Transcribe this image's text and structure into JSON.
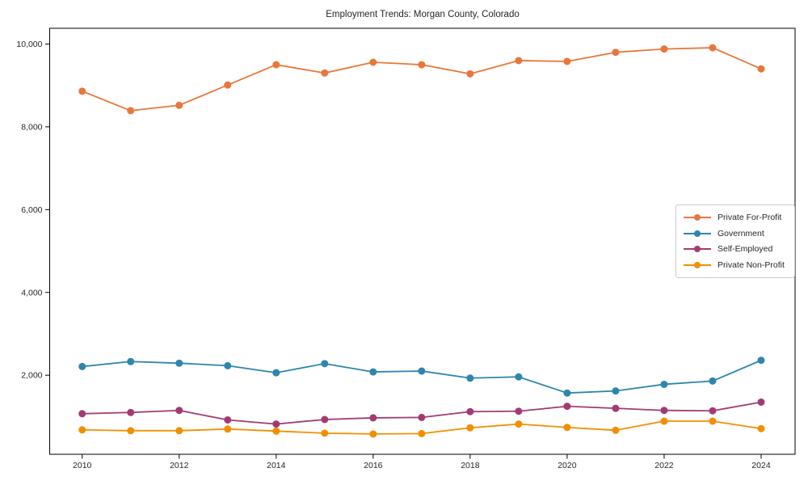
{
  "figure": {
    "background": "#ffffff",
    "text_color": "#262626",
    "frame_color": "#000000"
  },
  "chart_data": {
    "type": "line",
    "title": "Employment Trends: Morgan County, Colorado",
    "xlabel": "",
    "ylabel": "",
    "grid": false,
    "marker": "circle",
    "legend_position": "center-right",
    "x": [
      2010,
      2011,
      2012,
      2013,
      2014,
      2015,
      2016,
      2017,
      2018,
      2019,
      2020,
      2021,
      2022,
      2023,
      2024
    ],
    "series": [
      {
        "name": "Private For-Profit",
        "color": "#E8773C",
        "values": [
          8860,
          8390,
          8520,
          9010,
          9500,
          9300,
          9560,
          9500,
          9280,
          9600,
          9580,
          9800,
          9880,
          9910,
          9400
        ]
      },
      {
        "name": "Government",
        "color": "#2E86AB",
        "values": [
          2210,
          2330,
          2290,
          2230,
          2060,
          2280,
          2080,
          2100,
          1930,
          1960,
          1570,
          1620,
          1780,
          1860,
          2360
        ]
      },
      {
        "name": "Self-Employed",
        "color": "#A23B72",
        "values": [
          1070,
          1100,
          1150,
          920,
          820,
          930,
          970,
          980,
          1120,
          1130,
          1250,
          1200,
          1150,
          1140,
          1350
        ]
      },
      {
        "name": "Private Non-Profit",
        "color": "#F18F01",
        "values": [
          680,
          660,
          660,
          700,
          650,
          600,
          580,
          590,
          730,
          820,
          740,
          670,
          890,
          890,
          710
        ]
      }
    ],
    "xticks": [
      2010,
      2012,
      2014,
      2016,
      2018,
      2020,
      2022,
      2024
    ],
    "xtick_labels": [
      "2010",
      "2012",
      "2014",
      "2016",
      "2018",
      "2020",
      "2022",
      "2024"
    ],
    "yticks": [
      2000,
      4000,
      6000,
      8000,
      10000
    ],
    "ytick_labels": [
      "2,000",
      "4,000",
      "6,000",
      "8,000",
      "10,000"
    ],
    "xlim": [
      2009.33,
      2024.7
    ],
    "ylim": [
      90,
      10380
    ]
  }
}
